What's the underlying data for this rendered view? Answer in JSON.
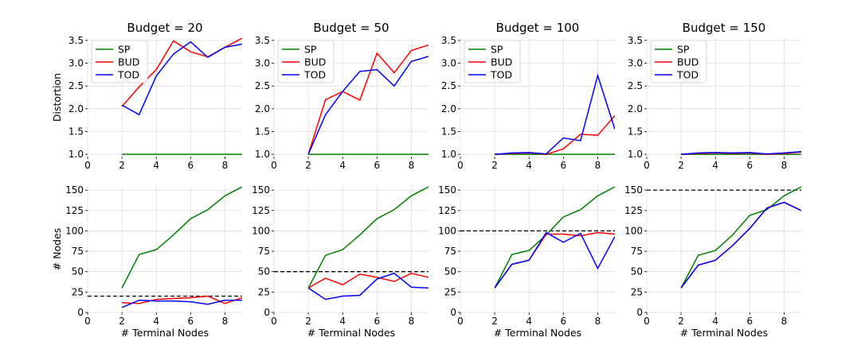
{
  "chart_data": [
    {
      "type": "line",
      "title": "Budget = 20",
      "ylabel": "Distortion",
      "xlabel": "",
      "xlim": [
        0,
        9
      ],
      "xticks": [
        0,
        2,
        4,
        6,
        8
      ],
      "ylim": [
        0.95,
        3.55
      ],
      "yticks": [
        1.0,
        1.5,
        2.0,
        2.5,
        3.0,
        3.5
      ],
      "ytick_labels": [
        "1.0",
        "1.5",
        "2.0",
        "2.5",
        "3.0",
        "3.5"
      ],
      "grid": true,
      "legend": "upper-left",
      "budget_line": null,
      "series": [
        {
          "name": "SP",
          "color": "#008000",
          "x": [
            2,
            3,
            4,
            5,
            6,
            7,
            8,
            9
          ],
          "values": [
            1,
            1,
            1,
            1,
            1,
            1,
            1,
            1
          ]
        },
        {
          "name": "BUD",
          "color": "#ff0000",
          "x": [
            2,
            3,
            4,
            5,
            6,
            7,
            8,
            9
          ],
          "values": [
            2.05,
            2.48,
            2.86,
            3.49,
            3.25,
            3.14,
            3.35,
            3.55
          ]
        },
        {
          "name": "TOD",
          "color": "#0000ff",
          "x": [
            2,
            3,
            4,
            5,
            6,
            7,
            8,
            9
          ],
          "values": [
            2.08,
            1.87,
            2.72,
            3.2,
            3.47,
            3.13,
            3.35,
            3.42
          ]
        }
      ]
    },
    {
      "type": "line",
      "title": "Budget = 50",
      "ylabel": "",
      "xlabel": "",
      "xlim": [
        0,
        9
      ],
      "xticks": [
        0,
        2,
        4,
        6,
        8
      ],
      "ylim": [
        0.95,
        3.55
      ],
      "yticks": [
        1.0,
        1.5,
        2.0,
        2.5,
        3.0,
        3.5
      ],
      "ytick_labels": [
        "1.0",
        "1.5",
        "2.0",
        "2.5",
        "3.0",
        "3.5"
      ],
      "grid": true,
      "legend": "upper-left",
      "budget_line": null,
      "series": [
        {
          "name": "SP",
          "color": "#008000",
          "x": [
            2,
            3,
            4,
            5,
            6,
            7,
            8,
            9
          ],
          "values": [
            1,
            1,
            1,
            1,
            1,
            1,
            1,
            1
          ]
        },
        {
          "name": "BUD",
          "color": "#ff0000",
          "x": [
            2,
            3,
            4,
            5,
            6,
            7,
            8,
            9
          ],
          "values": [
            1.0,
            2.2,
            2.38,
            2.19,
            3.22,
            2.79,
            3.28,
            3.4
          ]
        },
        {
          "name": "TOD",
          "color": "#0000ff",
          "x": [
            2,
            3,
            4,
            5,
            6,
            7,
            8,
            9
          ],
          "values": [
            1.0,
            1.87,
            2.38,
            2.82,
            2.86,
            2.5,
            3.04,
            3.15
          ]
        }
      ]
    },
    {
      "type": "line",
      "title": "Budget = 100",
      "ylabel": "",
      "xlabel": "",
      "xlim": [
        0,
        9
      ],
      "xticks": [
        0,
        2,
        4,
        6,
        8
      ],
      "ylim": [
        0.95,
        3.55
      ],
      "yticks": [
        1.0,
        1.5,
        2.0,
        2.5,
        3.0,
        3.5
      ],
      "ytick_labels": [
        "1.0",
        "1.5",
        "2.0",
        "2.5",
        "3.0",
        "3.5"
      ],
      "grid": true,
      "legend": "upper-left",
      "budget_line": null,
      "series": [
        {
          "name": "SP",
          "color": "#008000",
          "x": [
            2,
            3,
            4,
            5,
            6,
            7,
            8,
            9
          ],
          "values": [
            1,
            1,
            1,
            1,
            1,
            1,
            1,
            1
          ]
        },
        {
          "name": "BUD",
          "color": "#ff0000",
          "x": [
            2,
            3,
            4,
            5,
            6,
            7,
            8,
            9
          ],
          "values": [
            1.0,
            1.02,
            1.03,
            1.0,
            1.12,
            1.44,
            1.42,
            1.85
          ]
        },
        {
          "name": "TOD",
          "color": "#0000ff",
          "x": [
            2,
            3,
            4,
            5,
            6,
            7,
            8,
            9
          ],
          "values": [
            1.0,
            1.03,
            1.04,
            1.01,
            1.36,
            1.3,
            2.73,
            1.55
          ]
        }
      ]
    },
    {
      "type": "line",
      "title": "Budget = 150",
      "ylabel": "",
      "xlabel": "",
      "xlim": [
        0,
        9
      ],
      "xticks": [
        0,
        2,
        4,
        6,
        8
      ],
      "ylim": [
        0.95,
        3.55
      ],
      "yticks": [
        1.0,
        1.5,
        2.0,
        2.5,
        3.0,
        3.5
      ],
      "ytick_labels": [
        "1.0",
        "1.5",
        "2.0",
        "2.5",
        "3.0",
        "3.5"
      ],
      "grid": true,
      "legend": "upper-left",
      "budget_line": null,
      "series": [
        {
          "name": "SP",
          "color": "#008000",
          "x": [
            2,
            3,
            4,
            5,
            6,
            7,
            8,
            9
          ],
          "values": [
            1,
            1,
            1,
            1,
            1,
            1,
            1,
            1
          ]
        },
        {
          "name": "BUD",
          "color": "#ff0000",
          "x": [
            2,
            3,
            4,
            5,
            6,
            7,
            8,
            9
          ],
          "values": [
            1.0,
            1.02,
            1.03,
            1.02,
            1.03,
            1.0,
            1.02,
            1.05
          ]
        },
        {
          "name": "TOD",
          "color": "#0000ff",
          "x": [
            2,
            3,
            4,
            5,
            6,
            7,
            8,
            9
          ],
          "values": [
            1.0,
            1.03,
            1.04,
            1.03,
            1.04,
            1.01,
            1.03,
            1.06
          ]
        }
      ]
    },
    {
      "type": "line",
      "title": "",
      "ylabel": "# Nodes",
      "xlabel": "# Terminal Nodes",
      "xlim": [
        0,
        9
      ],
      "xticks": [
        0,
        2,
        4,
        6,
        8
      ],
      "ylim": [
        0,
        155
      ],
      "yticks": [
        0,
        25,
        50,
        75,
        100,
        125,
        150
      ],
      "ytick_labels": [
        "0",
        "25",
        "50",
        "75",
        "100",
        "125",
        "150"
      ],
      "grid": true,
      "legend": null,
      "budget_line": 20,
      "series": [
        {
          "name": "SP",
          "color": "#008000",
          "x": [
            2,
            3,
            4,
            5,
            6,
            7,
            8,
            9
          ],
          "values": [
            30,
            71,
            77,
            95,
            115,
            126,
            143,
            154
          ]
        },
        {
          "name": "BUD",
          "color": "#ff0000",
          "x": [
            2,
            3,
            4,
            5,
            6,
            7,
            8,
            9
          ],
          "values": [
            12,
            11,
            16,
            17,
            18,
            20,
            11,
            18
          ]
        },
        {
          "name": "TOD",
          "color": "#0000ff",
          "x": [
            2,
            3,
            4,
            5,
            6,
            7,
            8,
            9
          ],
          "values": [
            6,
            15,
            14,
            14,
            13,
            10,
            15,
            15
          ]
        }
      ]
    },
    {
      "type": "line",
      "title": "",
      "ylabel": "",
      "xlabel": "# Terminal Nodes",
      "xlim": [
        0,
        9
      ],
      "xticks": [
        0,
        2,
        4,
        6,
        8
      ],
      "ylim": [
        0,
        155
      ],
      "yticks": [
        0,
        25,
        50,
        75,
        100,
        125,
        150
      ],
      "ytick_labels": [
        "0",
        "25",
        "50",
        "75",
        "100",
        "125",
        "150"
      ],
      "grid": true,
      "legend": null,
      "budget_line": 50,
      "series": [
        {
          "name": "SP",
          "color": "#008000",
          "x": [
            2,
            3,
            4,
            5,
            6,
            7,
            8,
            9
          ],
          "values": [
            30,
            70,
            77,
            95,
            115,
            126,
            143,
            154
          ]
        },
        {
          "name": "BUD",
          "color": "#ff0000",
          "x": [
            2,
            3,
            4,
            5,
            6,
            7,
            8,
            9
          ],
          "values": [
            30,
            42,
            34,
            47,
            43,
            38,
            48,
            43
          ]
        },
        {
          "name": "TOD",
          "color": "#0000ff",
          "x": [
            2,
            3,
            4,
            5,
            6,
            7,
            8,
            9
          ],
          "values": [
            30,
            16,
            20,
            21,
            41,
            48,
            31,
            30
          ]
        }
      ]
    },
    {
      "type": "line",
      "title": "",
      "ylabel": "",
      "xlabel": "# Terminal Nodes",
      "xlim": [
        0,
        9
      ],
      "xticks": [
        0,
        2,
        4,
        6,
        8
      ],
      "ylim": [
        0,
        155
      ],
      "yticks": [
        0,
        25,
        50,
        75,
        100,
        125,
        150
      ],
      "ytick_labels": [
        "0",
        "25",
        "50",
        "75",
        "100",
        "125",
        "150"
      ],
      "grid": true,
      "legend": null,
      "budget_line": 100,
      "series": [
        {
          "name": "SP",
          "color": "#008000",
          "x": [
            2,
            3,
            4,
            5,
            6,
            7,
            8,
            9
          ],
          "values": [
            30,
            71,
            76,
            95,
            117,
            126,
            143,
            154
          ]
        },
        {
          "name": "BUD",
          "color": "#ff0000",
          "x": [
            2,
            3,
            4,
            5,
            6,
            7,
            8,
            9
          ],
          "values": [
            30,
            59,
            64,
            96,
            96,
            94,
            98,
            96
          ]
        },
        {
          "name": "TOD",
          "color": "#0000ff",
          "x": [
            2,
            3,
            4,
            5,
            6,
            7,
            8,
            9
          ],
          "values": [
            30,
            59,
            64,
            98,
            86,
            97,
            54,
            93
          ]
        }
      ]
    },
    {
      "type": "line",
      "title": "",
      "ylabel": "",
      "xlabel": "# Terminal Nodes",
      "xlim": [
        0,
        9
      ],
      "xticks": [
        0,
        2,
        4,
        6,
        8
      ],
      "ylim": [
        0,
        155
      ],
      "yticks": [
        0,
        25,
        50,
        75,
        100,
        125,
        150
      ],
      "ytick_labels": [
        "0",
        "25",
        "50",
        "75",
        "100",
        "125",
        "150"
      ],
      "grid": true,
      "legend": null,
      "budget_line": 150,
      "series": [
        {
          "name": "SP",
          "color": "#008000",
          "x": [
            2,
            3,
            4,
            5,
            6,
            7,
            8,
            9
          ],
          "values": [
            30,
            70,
            76,
            95,
            119,
            126,
            143,
            154
          ]
        },
        {
          "name": "BUD",
          "color": "#ff0000",
          "x": [
            2,
            3,
            4,
            5,
            6,
            7,
            8,
            9
          ],
          "values": [
            30,
            58,
            64,
            82,
            103,
            128,
            135,
            125
          ]
        },
        {
          "name": "TOD",
          "color": "#0000ff",
          "x": [
            2,
            3,
            4,
            5,
            6,
            7,
            8,
            9
          ],
          "values": [
            30,
            58,
            64,
            82,
            103,
            128,
            135,
            125
          ]
        }
      ]
    }
  ]
}
